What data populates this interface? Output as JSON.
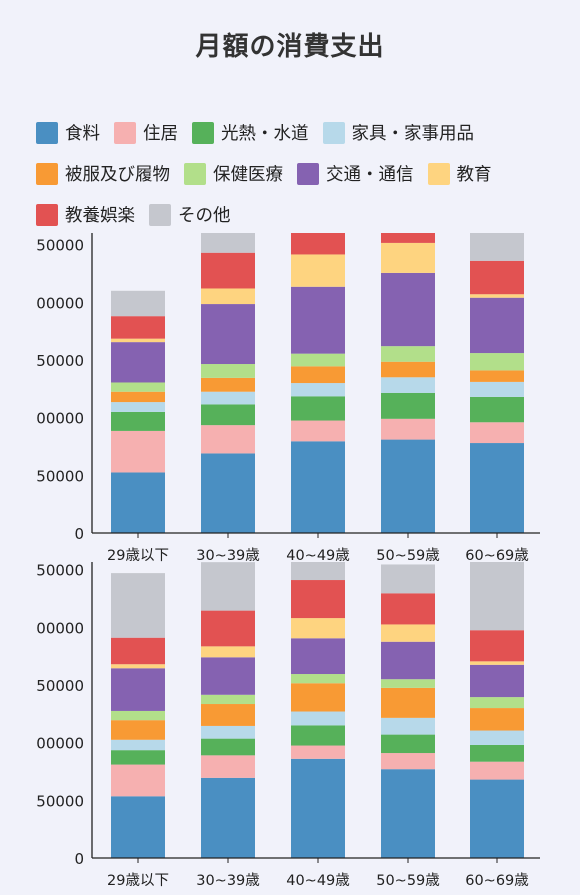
{
  "title": "月額の消費支出",
  "chart_data": {
    "type": "bar",
    "stacked": true,
    "title": "月額の消費支出",
    "legend_position": "top",
    "categories": [
      "29歳以下",
      "30~39歳",
      "40~49歳",
      "50~59歳",
      "60~69歳"
    ],
    "tick_labels": [
      "0",
      "50000",
      "00000",
      "50000",
      "00000",
      "50000"
    ],
    "series_meta": [
      {
        "name": "食料",
        "color": "#4a8fc2"
      },
      {
        "name": "住居",
        "color": "#f6b0b0"
      },
      {
        "name": "光熱・水道",
        "color": "#56b15a"
      },
      {
        "name": "家具・家事用品",
        "color": "#b7d9ea"
      },
      {
        "name": "被服及び履物",
        "color": "#f89a34"
      },
      {
        "name": "保健医療",
        "color": "#b2df8a"
      },
      {
        "name": "交通・通信",
        "color": "#8562b1"
      },
      {
        "name": "教育",
        "color": "#fed480"
      },
      {
        "name": "教養娯楽",
        "color": "#e25252"
      },
      {
        "name": "その他",
        "color": "#c5c7ce"
      }
    ],
    "charts": [
      {
        "ylim": [
          0,
          260000
        ],
        "series_values": [
          [
            52500,
            69000,
            79500,
            81000,
            78000
          ],
          [
            36000,
            24500,
            18000,
            18000,
            18000
          ],
          [
            16500,
            18000,
            21000,
            22500,
            22000
          ],
          [
            8500,
            11000,
            11500,
            13500,
            13000
          ],
          [
            9000,
            12000,
            14500,
            13500,
            10000
          ],
          [
            8000,
            12000,
            11000,
            13500,
            15000
          ],
          [
            35000,
            52000,
            58000,
            63500,
            48000
          ],
          [
            3000,
            13500,
            28000,
            26000,
            3000
          ],
          [
            19500,
            31000,
            20000,
            11000,
            29000
          ],
          [
            22000,
            25000,
            14000,
            5000,
            25000
          ]
        ]
      },
      {
        "ylim": [
          0,
          250000
        ],
        "series_values": [
          [
            53500,
            69500,
            86000,
            77000,
            68000
          ],
          [
            27500,
            19500,
            11500,
            14000,
            15500
          ],
          [
            12500,
            14500,
            17500,
            16000,
            14500
          ],
          [
            9000,
            11000,
            12000,
            14500,
            12500
          ],
          [
            17000,
            19000,
            24500,
            26000,
            19500
          ],
          [
            8000,
            8000,
            8000,
            7500,
            9500
          ],
          [
            37000,
            32500,
            31000,
            32500,
            28000
          ],
          [
            3500,
            9500,
            17500,
            15000,
            3000
          ],
          [
            23000,
            31000,
            33000,
            27000,
            27000
          ],
          [
            56000,
            42000,
            20000,
            25000,
            60000
          ]
        ]
      }
    ]
  }
}
